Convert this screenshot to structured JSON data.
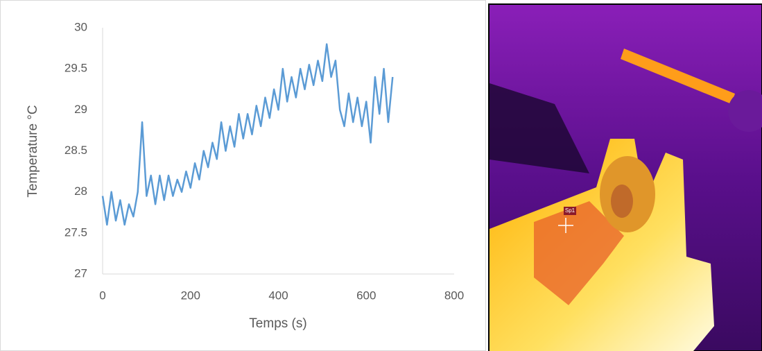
{
  "chart_data": {
    "type": "line",
    "x_label": "Temps (s)",
    "y_label": "Temperature °C",
    "xlim": [
      0,
      800
    ],
    "xticks": [
      0,
      200,
      400,
      600,
      800
    ],
    "ylim": [
      27,
      30
    ],
    "yticks": [
      27,
      {
        "value": 27.5,
        "label": "27.5"
      },
      28,
      {
        "value": 28.5,
        "label": "28.5"
      },
      29,
      {
        "value": 29.5,
        "label": "29.5"
      },
      30
    ],
    "grid": false,
    "series": [
      {
        "color": "#5b9bd5",
        "x": [
          0,
          10,
          20,
          30,
          40,
          50,
          60,
          70,
          80,
          90,
          100,
          110,
          120,
          130,
          140,
          150,
          160,
          170,
          180,
          190,
          200,
          210,
          220,
          230,
          240,
          250,
          260,
          270,
          280,
          290,
          300,
          310,
          320,
          330,
          340,
          350,
          360,
          370,
          380,
          390,
          400,
          410,
          420,
          430,
          440,
          450,
          460,
          470,
          480,
          490,
          500,
          510,
          520,
          530,
          540,
          550,
          560,
          570,
          580,
          590,
          600,
          610,
          620,
          630,
          640,
          650,
          660
        ],
        "values": [
          27.95,
          27.6,
          28.0,
          27.65,
          27.9,
          27.6,
          27.85,
          27.7,
          28.0,
          28.85,
          27.95,
          28.2,
          27.85,
          28.2,
          27.9,
          28.2,
          27.95,
          28.15,
          28.0,
          28.25,
          28.05,
          28.35,
          28.15,
          28.5,
          28.3,
          28.6,
          28.4,
          28.85,
          28.5,
          28.8,
          28.55,
          28.95,
          28.65,
          28.95,
          28.7,
          29.05,
          28.8,
          29.15,
          28.9,
          29.25,
          29.0,
          29.5,
          29.1,
          29.4,
          29.15,
          29.5,
          29.25,
          29.55,
          29.3,
          29.6,
          29.35,
          29.8,
          29.4,
          29.6,
          29.0,
          28.8,
          29.2,
          28.85,
          29.15,
          28.8,
          29.1,
          28.6,
          29.4,
          28.95,
          29.5,
          28.85,
          29.4
        ]
      }
    ]
  },
  "image": {
    "marker_label": "Sp1"
  }
}
